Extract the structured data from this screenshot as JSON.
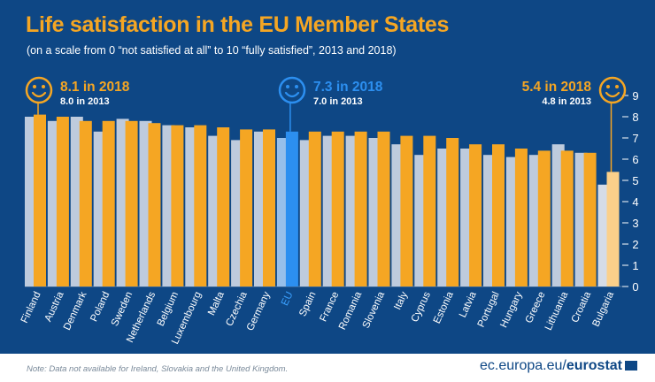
{
  "title": "Life satisfaction in the EU Member States",
  "subtitle": "(on a scale from 0 “not satisfied at all” to 10 “fully satisfied”, 2013 and 2018)",
  "footnote": "Note: Data not available for Ireland, Slovakia and the United Kingdom.",
  "brand": {
    "prefix": "ec.europa.eu/",
    "name": "eurostat"
  },
  "colors": {
    "background": "#0e4785",
    "bar_2018": "#f5a623",
    "bar_2013": "#c8d3e2",
    "eu_2018": "#2c8ff0",
    "eu_2013": "#9fc6ef",
    "bulgaria_2018": "#fbd08a",
    "bulgaria_2013": "#e0e5ec"
  },
  "callouts": [
    {
      "label_2018": "8.1 in 2018",
      "label_2013": "8.0 in 2013",
      "category": "Finland",
      "icon": "smiley-face-icon",
      "color": "#f5a623"
    },
    {
      "label_2018": "7.3 in 2018",
      "label_2013": "7.0 in 2013",
      "category": "EU",
      "icon": "smiley-face-icon",
      "color": "#2c8ff0"
    },
    {
      "label_2018": "5.4 in 2018",
      "label_2013": "4.8 in 2013",
      "category": "Bulgaria",
      "icon": "smiley-face-icon",
      "color": "#f5a623"
    }
  ],
  "chart_data": {
    "type": "bar",
    "title": "Life satisfaction in the EU Member States",
    "categories": [
      "Finland",
      "Austria",
      "Denmark",
      "Poland",
      "Sweden",
      "Netherlands",
      "Belgium",
      "Luxembourg",
      "Malta",
      "Czechia",
      "Germany",
      "EU",
      "Spain",
      "France",
      "Romania",
      "Slovenia",
      "Italy",
      "Cyprus",
      "Estonia",
      "Latvia",
      "Portugal",
      "Hungary",
      "Greece",
      "Lithuania",
      "Croatia",
      "Bulgaria"
    ],
    "series": [
      {
        "name": "2013",
        "values": [
          8.0,
          7.8,
          8.0,
          7.3,
          7.9,
          7.8,
          7.6,
          7.5,
          7.1,
          6.9,
          7.3,
          7.0,
          6.9,
          7.1,
          7.1,
          7.0,
          6.7,
          6.2,
          6.5,
          6.5,
          6.2,
          6.1,
          6.2,
          6.7,
          6.3,
          4.8
        ]
      },
      {
        "name": "2018",
        "values": [
          8.1,
          8.0,
          7.8,
          7.8,
          7.8,
          7.7,
          7.6,
          7.6,
          7.5,
          7.4,
          7.4,
          7.3,
          7.3,
          7.3,
          7.3,
          7.3,
          7.1,
          7.1,
          7.0,
          6.7,
          6.7,
          6.5,
          6.4,
          6.4,
          6.3,
          5.4
        ]
      }
    ],
    "yticks": [
      0,
      1,
      2,
      3,
      4,
      5,
      6,
      7,
      8,
      9
    ],
    "ylim": [
      0,
      9
    ],
    "xlabel": "",
    "ylabel": "",
    "grid": false,
    "axis_side": "right"
  }
}
